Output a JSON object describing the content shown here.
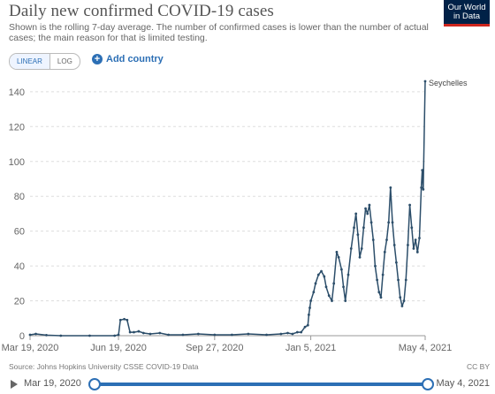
{
  "header": {
    "title": "Daily new confirmed COVID-19 cases",
    "subtitle": "Shown is the rolling 7-day average. The number of confirmed cases is lower than the number of actual cases; the main reason for that is limited testing."
  },
  "logo": {
    "line1": "Our World",
    "line2": "in Data"
  },
  "controls": {
    "linear_label": "LINEAR",
    "log_label": "LOG",
    "add_country_label": "Add country"
  },
  "footer": {
    "source": "Source: Johns Hopkins University CSSE COVID-19 Data",
    "license": "CC BY"
  },
  "timeline": {
    "start_label": "Mar 19, 2020",
    "end_label": "May 4, 2021"
  },
  "colors": {
    "line": "#2c4e6a",
    "accent": "#2c6fb5",
    "grid": "#dddddd"
  },
  "icons": {
    "add": "plus-circle-icon",
    "play": "play-icon"
  },
  "chart_data": {
    "type": "line",
    "scale": "linear",
    "ylim": [
      0,
      145
    ],
    "yticks": [
      0,
      20,
      40,
      60,
      80,
      100,
      120,
      140
    ],
    "xlim": [
      "2020-03-19",
      "2021-05-04"
    ],
    "xticks": [
      "2020-03-19",
      "2020-06-19",
      "2020-09-27",
      "2021-01-05",
      "2021-05-04"
    ],
    "xtick_labels": [
      "Mar 19, 2020",
      "Jun 19, 2020",
      "Sep 27, 2020",
      "Jan 5, 2021",
      "May 4, 2021"
    ],
    "grid": true,
    "series": [
      {
        "name": "Seychelles",
        "points": [
          [
            "2020-03-19",
            0.5
          ],
          [
            "2020-03-25",
            1
          ],
          [
            "2020-04-05",
            0.3
          ],
          [
            "2020-04-20",
            0
          ],
          [
            "2020-05-20",
            0
          ],
          [
            "2020-06-15",
            0
          ],
          [
            "2020-06-19",
            0.5
          ],
          [
            "2020-06-21",
            9
          ],
          [
            "2020-06-25",
            9.5
          ],
          [
            "2020-06-28",
            9
          ],
          [
            "2020-07-01",
            2
          ],
          [
            "2020-07-05",
            2
          ],
          [
            "2020-07-10",
            2.5
          ],
          [
            "2020-07-15",
            1.5
          ],
          [
            "2020-07-22",
            1
          ],
          [
            "2020-08-01",
            1.5
          ],
          [
            "2020-08-10",
            0.5
          ],
          [
            "2020-08-25",
            0.5
          ],
          [
            "2020-09-10",
            1
          ],
          [
            "2020-09-27",
            0.5
          ],
          [
            "2020-10-15",
            0.5
          ],
          [
            "2020-11-01",
            1
          ],
          [
            "2020-11-20",
            0.5
          ],
          [
            "2020-12-05",
            1
          ],
          [
            "2020-12-12",
            1.5
          ],
          [
            "2020-12-17",
            1
          ],
          [
            "2020-12-22",
            2
          ],
          [
            "2020-12-26",
            2
          ],
          [
            "2020-12-30",
            5
          ],
          [
            "2021-01-02",
            6
          ],
          [
            "2021-01-03",
            12
          ],
          [
            "2021-01-04",
            16
          ],
          [
            "2021-01-05",
            20
          ],
          [
            "2021-01-08",
            25
          ],
          [
            "2021-01-10",
            30
          ],
          [
            "2021-01-13",
            35
          ],
          [
            "2021-01-16",
            37
          ],
          [
            "2021-01-19",
            34
          ],
          [
            "2021-01-21",
            28
          ],
          [
            "2021-01-24",
            23
          ],
          [
            "2021-01-27",
            20
          ],
          [
            "2021-01-29",
            30
          ],
          [
            "2021-02-01",
            48
          ],
          [
            "2021-02-03",
            45
          ],
          [
            "2021-02-06",
            38
          ],
          [
            "2021-02-08",
            28
          ],
          [
            "2021-02-10",
            20
          ],
          [
            "2021-02-13",
            35
          ],
          [
            "2021-02-16",
            50
          ],
          [
            "2021-02-19",
            62
          ],
          [
            "2021-02-21",
            70
          ],
          [
            "2021-02-23",
            58
          ],
          [
            "2021-02-25",
            45
          ],
          [
            "2021-02-27",
            50
          ],
          [
            "2021-03-01",
            62
          ],
          [
            "2021-03-03",
            73
          ],
          [
            "2021-03-05",
            70
          ],
          [
            "2021-03-07",
            75
          ],
          [
            "2021-03-09",
            65
          ],
          [
            "2021-03-11",
            55
          ],
          [
            "2021-03-13",
            40
          ],
          [
            "2021-03-15",
            32
          ],
          [
            "2021-03-17",
            25
          ],
          [
            "2021-03-19",
            22
          ],
          [
            "2021-03-21",
            35
          ],
          [
            "2021-03-23",
            48
          ],
          [
            "2021-03-25",
            55
          ],
          [
            "2021-03-27",
            65
          ],
          [
            "2021-03-29",
            85
          ],
          [
            "2021-03-31",
            65
          ],
          [
            "2021-04-02",
            52
          ],
          [
            "2021-04-04",
            42
          ],
          [
            "2021-04-06",
            32
          ],
          [
            "2021-04-08",
            22
          ],
          [
            "2021-04-10",
            17
          ],
          [
            "2021-04-12",
            20
          ],
          [
            "2021-04-14",
            32
          ],
          [
            "2021-04-16",
            52
          ],
          [
            "2021-04-18",
            75
          ],
          [
            "2021-04-20",
            62
          ],
          [
            "2021-04-22",
            50
          ],
          [
            "2021-04-24",
            55
          ],
          [
            "2021-04-26",
            48
          ],
          [
            "2021-04-28",
            56
          ],
          [
            "2021-04-30",
            85
          ],
          [
            "2021-05-01",
            95
          ],
          [
            "2021-05-02",
            84
          ],
          [
            "2021-05-04",
            146
          ]
        ]
      }
    ]
  }
}
